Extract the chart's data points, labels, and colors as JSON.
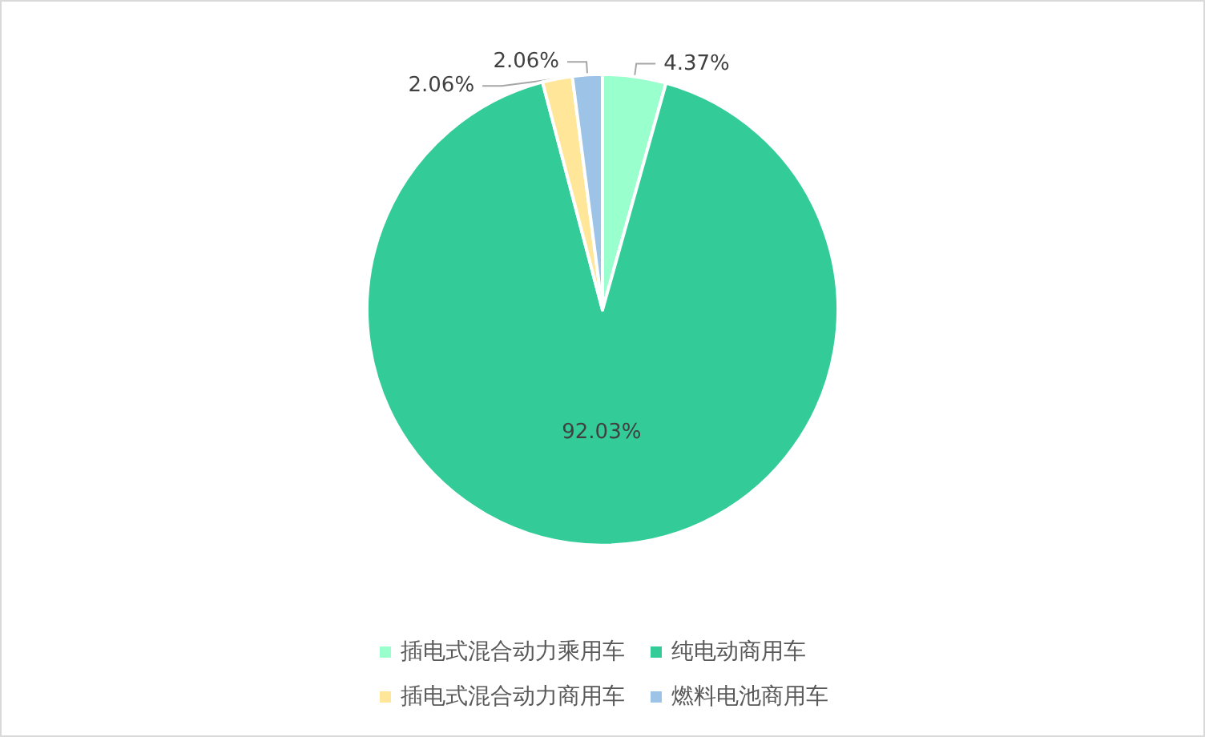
{
  "chart_data": {
    "type": "pie",
    "categories": [
      "插电式混合动力乘用车",
      "纯电动商用车",
      "插电式混合动力商用车",
      "燃料电池商用车"
    ],
    "values": [
      4.37,
      92.03,
      2.06,
      2.06
    ],
    "colors": [
      "#99ffcc",
      "#33cc99",
      "#ffe699",
      "#9dc3e6"
    ],
    "value_labels": [
      "4.37%",
      "92.03%",
      "2.06%",
      "2.06%"
    ],
    "legend": "bottom"
  }
}
